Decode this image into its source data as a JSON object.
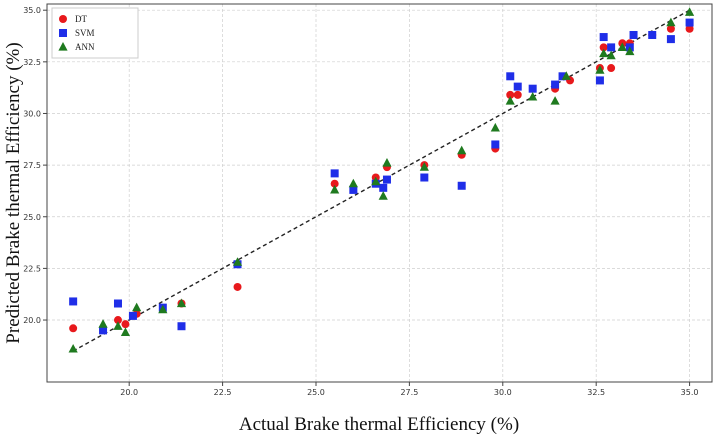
{
  "chart_data": {
    "type": "scatter",
    "title": "",
    "xlabel": "Actual Brake thermal Efficiency (%)",
    "ylabel": "Predicted Brake thermal Efficiency (%)",
    "xlim": [
      17.8,
      35.6
    ],
    "ylim": [
      17.0,
      35.3
    ],
    "xticks": [
      "20.0",
      "22.5",
      "25.0",
      "27.5",
      "30.0",
      "32.5",
      "35.0"
    ],
    "yticks": [
      "20.0",
      "22.5",
      "25.0",
      "27.5",
      "30.0",
      "32.5",
      "35.0"
    ],
    "grid": true,
    "legend_position": "top-left",
    "reference_line": {
      "style": "dashed",
      "color": "#222222",
      "from": [
        18.5,
        18.5
      ],
      "to": [
        35.0,
        35.0
      ]
    },
    "series": [
      {
        "name": "DT",
        "marker": "circle",
        "color": "#e8191c",
        "points": [
          [
            18.5,
            19.6
          ],
          [
            19.7,
            20.0
          ],
          [
            19.9,
            19.8
          ],
          [
            20.2,
            20.3
          ],
          [
            21.4,
            20.8
          ],
          [
            22.9,
            21.6
          ],
          [
            25.5,
            26.6
          ],
          [
            26.6,
            26.9
          ],
          [
            26.9,
            27.4
          ],
          [
            27.9,
            27.5
          ],
          [
            28.9,
            28.0
          ],
          [
            29.8,
            28.3
          ],
          [
            30.2,
            30.9
          ],
          [
            30.4,
            30.9
          ],
          [
            31.4,
            31.2
          ],
          [
            31.8,
            31.6
          ],
          [
            32.6,
            32.2
          ],
          [
            32.7,
            33.2
          ],
          [
            32.9,
            32.2
          ],
          [
            33.2,
            33.4
          ],
          [
            33.4,
            33.4
          ],
          [
            34.0,
            33.8
          ],
          [
            34.5,
            34.1
          ],
          [
            35.0,
            34.1
          ]
        ]
      },
      {
        "name": "SVM",
        "marker": "square",
        "color": "#1f2ee8",
        "points": [
          [
            18.5,
            20.9
          ],
          [
            19.3,
            19.5
          ],
          [
            19.7,
            20.8
          ],
          [
            20.1,
            20.2
          ],
          [
            20.9,
            20.6
          ],
          [
            21.4,
            19.7
          ],
          [
            22.9,
            22.7
          ],
          [
            25.5,
            27.1
          ],
          [
            26.0,
            26.3
          ],
          [
            26.6,
            26.6
          ],
          [
            26.8,
            26.4
          ],
          [
            26.9,
            26.8
          ],
          [
            27.9,
            26.9
          ],
          [
            28.9,
            26.5
          ],
          [
            29.8,
            28.5
          ],
          [
            30.2,
            31.8
          ],
          [
            30.4,
            31.3
          ],
          [
            30.8,
            31.2
          ],
          [
            31.4,
            31.4
          ],
          [
            31.6,
            31.8
          ],
          [
            32.6,
            31.6
          ],
          [
            32.7,
            33.7
          ],
          [
            32.9,
            33.2
          ],
          [
            33.4,
            33.2
          ],
          [
            33.5,
            33.8
          ],
          [
            34.0,
            33.8
          ],
          [
            34.5,
            33.6
          ],
          [
            35.0,
            34.4
          ]
        ]
      },
      {
        "name": "ANN",
        "marker": "triangle",
        "color": "#1f7a1f",
        "points": [
          [
            18.5,
            18.6
          ],
          [
            19.3,
            19.8
          ],
          [
            19.7,
            19.7
          ],
          [
            19.9,
            19.4
          ],
          [
            20.2,
            20.6
          ],
          [
            20.9,
            20.5
          ],
          [
            21.4,
            20.8
          ],
          [
            22.9,
            22.8
          ],
          [
            25.5,
            26.3
          ],
          [
            26.0,
            26.6
          ],
          [
            26.6,
            26.7
          ],
          [
            26.8,
            26.0
          ],
          [
            26.9,
            27.6
          ],
          [
            27.9,
            27.4
          ],
          [
            28.9,
            28.2
          ],
          [
            29.8,
            29.3
          ],
          [
            30.2,
            30.6
          ],
          [
            30.8,
            30.8
          ],
          [
            31.4,
            30.6
          ],
          [
            31.7,
            31.8
          ],
          [
            32.6,
            32.1
          ],
          [
            32.7,
            32.9
          ],
          [
            32.9,
            32.8
          ],
          [
            33.2,
            33.2
          ],
          [
            33.4,
            33.0
          ],
          [
            34.5,
            34.4
          ],
          [
            35.0,
            34.9
          ]
        ]
      }
    ]
  }
}
